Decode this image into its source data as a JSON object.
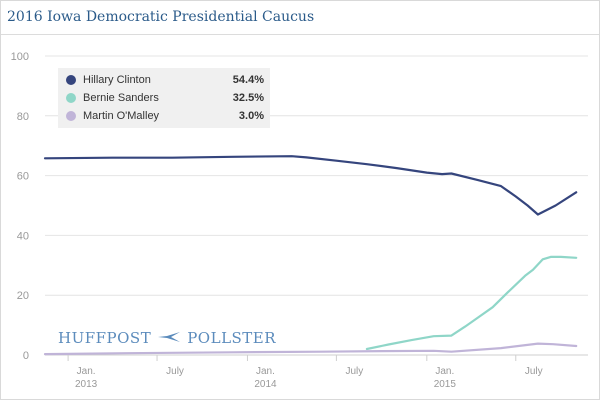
{
  "header": {
    "title": "2016 Iowa Democratic Presidential Caucus"
  },
  "watermark": {
    "left": "HUFFPOST",
    "right": "POLLSTER",
    "icon": "bird-logo-icon"
  },
  "colors": {
    "clinton": "#35457d",
    "sanders": "#8fd6c8",
    "omalley": "#c0b4d8",
    "grid": "#e4e4e4",
    "tick_text": "#999999",
    "title": "#2b5b8a"
  },
  "chart_data": {
    "type": "line",
    "title": "2016 Iowa Democratic Presidential Caucus",
    "ylim": [
      0,
      100
    ],
    "y_ticks": [
      0,
      20,
      40,
      60,
      80,
      100
    ],
    "xlim": [
      "2012-11-15",
      "2015-11-25"
    ],
    "x_ticks": [
      {
        "date": "2013-01-01",
        "label": "Jan.",
        "sublabel": "2013"
      },
      {
        "date": "2013-07-01",
        "label": "July",
        "sublabel": ""
      },
      {
        "date": "2014-01-01",
        "label": "Jan.",
        "sublabel": "2014"
      },
      {
        "date": "2014-07-01",
        "label": "July",
        "sublabel": ""
      },
      {
        "date": "2015-01-01",
        "label": "Jan.",
        "sublabel": "2015"
      },
      {
        "date": "2015-07-01",
        "label": "July",
        "sublabel": ""
      }
    ],
    "grid": "horizontal",
    "legend_position": "top-left",
    "series": [
      {
        "name": "Hillary Clinton",
        "last_value": "54.4%",
        "color_key": "clinton",
        "points": [
          [
            "2012-11-15",
            65.8
          ],
          [
            "2013-04-01",
            66.0
          ],
          [
            "2013-08-01",
            66.0
          ],
          [
            "2013-12-01",
            66.3
          ],
          [
            "2014-04-01",
            66.5
          ],
          [
            "2014-05-01",
            66.1
          ],
          [
            "2014-07-01",
            65.0
          ],
          [
            "2014-09-01",
            63.8
          ],
          [
            "2014-11-01",
            62.5
          ],
          [
            "2015-01-01",
            61.0
          ],
          [
            "2015-02-01",
            60.5
          ],
          [
            "2015-02-20",
            60.7
          ],
          [
            "2015-04-15",
            58.5
          ],
          [
            "2015-06-01",
            56.5
          ],
          [
            "2015-07-01",
            53.0
          ],
          [
            "2015-07-25",
            50.0
          ],
          [
            "2015-08-15",
            47.0
          ],
          [
            "2015-09-20",
            50.0
          ],
          [
            "2015-11-01",
            54.4
          ]
        ]
      },
      {
        "name": "Bernie Sanders",
        "last_value": "32.5%",
        "color_key": "sanders",
        "points": [
          [
            "2014-09-01",
            2.0
          ],
          [
            "2014-10-15",
            3.5
          ],
          [
            "2014-12-01",
            5.0
          ],
          [
            "2015-01-15",
            6.3
          ],
          [
            "2015-02-20",
            6.5
          ],
          [
            "2015-03-20",
            9.5
          ],
          [
            "2015-04-15",
            12.5
          ],
          [
            "2015-05-15",
            16.0
          ],
          [
            "2015-06-15",
            21.0
          ],
          [
            "2015-07-20",
            26.5
          ],
          [
            "2015-08-05",
            28.5
          ],
          [
            "2015-08-25",
            32.0
          ],
          [
            "2015-09-10",
            32.8
          ],
          [
            "2015-10-01",
            32.8
          ],
          [
            "2015-11-01",
            32.5
          ]
        ]
      },
      {
        "name": "Martin O'Malley",
        "last_value": "3.0%",
        "color_key": "omalley",
        "points": [
          [
            "2012-11-15",
            0.3
          ],
          [
            "2013-05-01",
            0.6
          ],
          [
            "2013-12-01",
            0.9
          ],
          [
            "2014-06-01",
            1.1
          ],
          [
            "2014-10-01",
            1.3
          ],
          [
            "2015-01-15",
            1.4
          ],
          [
            "2015-02-20",
            1.1
          ],
          [
            "2015-06-01",
            2.3
          ],
          [
            "2015-08-15",
            3.8
          ],
          [
            "2015-09-15",
            3.6
          ],
          [
            "2015-11-01",
            3.0
          ]
        ]
      }
    ]
  }
}
